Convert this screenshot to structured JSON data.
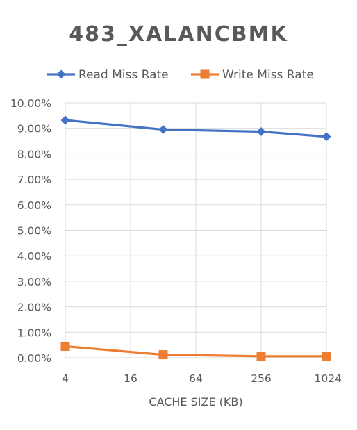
{
  "chart_data": {
    "type": "line",
    "title": "483_XALANCBMK",
    "xlabel": "CACHE SIZE (KB)",
    "ylabel": "",
    "x_scale": "log2",
    "x_ticks": [
      4,
      16,
      64,
      256,
      1024
    ],
    "xlim": [
      4,
      1024
    ],
    "ylim": [
      0,
      10
    ],
    "y_ticks": [
      0,
      1,
      2,
      3,
      4,
      5,
      6,
      7,
      8,
      9,
      10
    ],
    "y_tick_labels": [
      "0.00%",
      "1.00%",
      "2.00%",
      "3.00%",
      "4.00%",
      "5.00%",
      "6.00%",
      "7.00%",
      "8.00%",
      "9.00%",
      "10.00%"
    ],
    "grid": true,
    "legend_position": "top",
    "series": [
      {
        "name": "Read Miss Rate",
        "color": "#4472c4",
        "marker": "diamond",
        "x": [
          4,
          32,
          256,
          1024
        ],
        "y": [
          9.32,
          8.95,
          8.87,
          8.67
        ]
      },
      {
        "name": "Write Miss Rate",
        "color": "#ed7d31",
        "marker": "square",
        "x": [
          4,
          32,
          256,
          1024
        ],
        "y": [
          0.45,
          0.12,
          0.06,
          0.06
        ]
      }
    ]
  }
}
